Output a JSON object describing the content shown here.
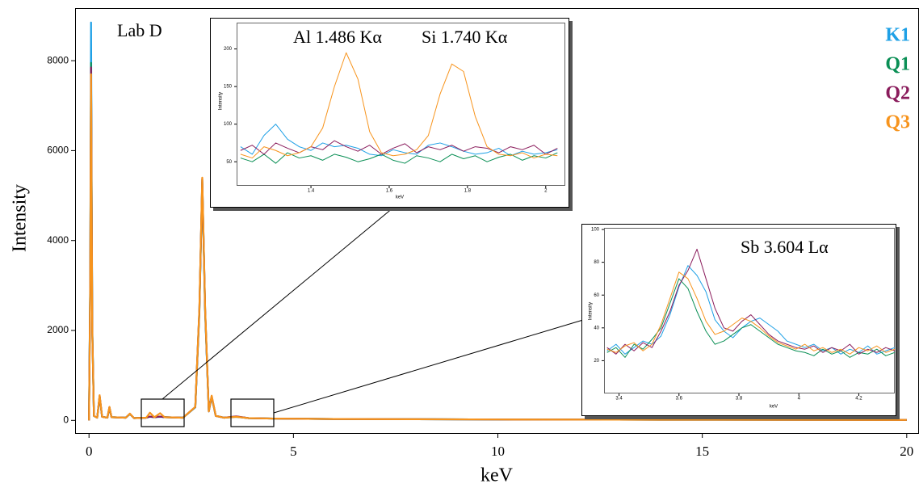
{
  "chart_data": [
    {
      "type": "line",
      "annotation": "Lab D",
      "xlabel": "keV",
      "ylabel": "Intensity",
      "x": [
        0,
        0.03,
        0.05,
        0.08,
        0.12,
        0.2,
        0.26,
        0.32,
        0.45,
        0.5,
        0.55,
        0.9,
        1.0,
        1.1,
        1.4,
        1.49,
        1.6,
        1.74,
        1.85,
        2.3,
        2.6,
        2.7,
        2.77,
        2.84,
        2.93,
        3.0,
        3.1,
        3.3,
        3.6,
        3.9,
        4.5,
        6,
        8,
        10,
        14,
        20
      ],
      "series": [
        {
          "name": "K1",
          "color": "#1ea0e6",
          "values": [
            0,
            3200,
            8850,
            2100,
            100,
            60,
            520,
            80,
            60,
            280,
            70,
            60,
            140,
            50,
            60,
            80,
            70,
            80,
            70,
            60,
            290,
            2400,
            5300,
            2400,
            200,
            520,
            100,
            60,
            85,
            50,
            40,
            30,
            25,
            20,
            15,
            10
          ]
        },
        {
          "name": "Q1",
          "color": "#0a8f55",
          "values": [
            0,
            3100,
            7950,
            2050,
            100,
            60,
            540,
            80,
            60,
            290,
            70,
            60,
            145,
            50,
            60,
            85,
            70,
            85,
            70,
            60,
            295,
            2450,
            5350,
            2450,
            200,
            530,
            100,
            60,
            80,
            50,
            40,
            30,
            25,
            20,
            15,
            10
          ]
        },
        {
          "name": "Q2",
          "color": "#8a1c5c",
          "values": [
            0,
            3050,
            7850,
            2020,
            100,
            60,
            550,
            80,
            60,
            295,
            70,
            60,
            148,
            50,
            60,
            85,
            70,
            85,
            70,
            60,
            298,
            2480,
            5380,
            2480,
            200,
            540,
            100,
            60,
            90,
            50,
            40,
            30,
            25,
            20,
            15,
            10
          ]
        },
        {
          "name": "Q3",
          "color": "#f7941d",
          "values": [
            0,
            3000,
            7700,
            2000,
            100,
            60,
            560,
            80,
            60,
            300,
            70,
            60,
            150,
            50,
            60,
            170,
            70,
            160,
            70,
            60,
            300,
            2500,
            5400,
            2500,
            200,
            550,
            100,
            60,
            80,
            50,
            40,
            30,
            25,
            20,
            15,
            10
          ]
        }
      ],
      "xlim": [
        -0.34,
        20.3
      ],
      "ylim": [
        -300,
        9170
      ],
      "xticks": [
        0,
        5,
        10,
        15,
        20
      ],
      "yticks": [
        0,
        2000,
        4000,
        6000,
        8000
      ]
    },
    {
      "type": "line",
      "annotations": [
        "Al 1.486 Kα",
        "Si 1.740 Kα"
      ],
      "xlabel": "keV",
      "ylabel": "Intensity",
      "x": [
        1.22,
        1.25,
        1.28,
        1.31,
        1.34,
        1.37,
        1.4,
        1.43,
        1.46,
        1.49,
        1.52,
        1.55,
        1.58,
        1.61,
        1.64,
        1.67,
        1.7,
        1.73,
        1.76,
        1.79,
        1.82,
        1.85,
        1.88,
        1.91,
        1.94,
        1.97,
        2.0,
        2.03
      ],
      "series": [
        {
          "color": "#1ea0e6",
          "values": [
            70,
            60,
            85,
            100,
            80,
            70,
            65,
            75,
            70,
            72,
            68,
            60,
            58,
            66,
            62,
            60,
            72,
            75,
            70,
            64,
            60,
            62,
            68,
            58,
            64,
            60,
            62,
            66
          ]
        },
        {
          "color": "#0a8f55",
          "values": [
            55,
            50,
            60,
            48,
            62,
            55,
            58,
            52,
            60,
            56,
            50,
            54,
            60,
            52,
            48,
            58,
            55,
            50,
            60,
            54,
            58,
            50,
            56,
            60,
            52,
            58,
            55,
            62
          ]
        },
        {
          "color": "#8a1c5c",
          "values": [
            65,
            72,
            60,
            75,
            68,
            62,
            70,
            66,
            78,
            70,
            64,
            72,
            60,
            68,
            74,
            62,
            70,
            66,
            72,
            64,
            70,
            68,
            62,
            70,
            66,
            72,
            60,
            68
          ]
        },
        {
          "color": "#f7941d",
          "values": [
            60,
            55,
            70,
            65,
            58,
            62,
            70,
            95,
            150,
            195,
            160,
            90,
            62,
            58,
            60,
            66,
            85,
            140,
            180,
            170,
            110,
            70,
            60,
            58,
            62,
            55,
            60,
            58
          ]
        }
      ],
      "xlim": [
        1.21,
        2.05
      ],
      "ylim": [
        18,
        235
      ],
      "xticks": [
        1.4,
        1.6,
        1.8,
        2
      ],
      "yticks": [
        50,
        100,
        150,
        200
      ]
    },
    {
      "type": "line",
      "annotation": "Sb 3.604 Lα",
      "xlabel": "keV",
      "ylabel": "Intensity",
      "x": [
        3.36,
        3.39,
        3.42,
        3.45,
        3.48,
        3.51,
        3.54,
        3.57,
        3.6,
        3.63,
        3.66,
        3.69,
        3.72,
        3.75,
        3.78,
        3.81,
        3.84,
        3.87,
        3.9,
        3.93,
        3.96,
        3.99,
        4.02,
        4.05,
        4.08,
        4.11,
        4.14,
        4.17,
        4.2,
        4.23,
        4.26,
        4.29,
        4.32
      ],
      "series": [
        {
          "color": "#1ea0e6",
          "values": [
            26,
            30,
            24,
            28,
            32,
            30,
            35,
            48,
            65,
            78,
            72,
            62,
            45,
            38,
            34,
            40,
            44,
            46,
            42,
            38,
            32,
            30,
            28,
            30,
            26,
            28,
            24,
            27,
            25,
            29,
            24,
            26,
            28
          ]
        },
        {
          "color": "#0a8f55",
          "values": [
            25,
            28,
            22,
            30,
            27,
            33,
            40,
            55,
            70,
            64,
            50,
            38,
            30,
            32,
            36,
            40,
            42,
            38,
            34,
            30,
            28,
            26,
            25,
            23,
            27,
            24,
            26,
            22,
            25,
            24,
            27,
            23,
            25
          ]
        },
        {
          "color": "#8a1c5c",
          "values": [
            28,
            24,
            30,
            26,
            31,
            28,
            38,
            50,
            66,
            75,
            88,
            70,
            52,
            40,
            38,
            44,
            48,
            42,
            36,
            32,
            30,
            28,
            27,
            29,
            25,
            28,
            26,
            30,
            24,
            27,
            25,
            28,
            26
          ]
        },
        {
          "color": "#f7941d",
          "values": [
            27,
            25,
            29,
            31,
            26,
            30,
            42,
            58,
            74,
            70,
            58,
            44,
            36,
            38,
            42,
            46,
            44,
            40,
            35,
            31,
            29,
            27,
            30,
            26,
            28,
            25,
            27,
            24,
            28,
            26,
            29,
            25,
            27
          ]
        }
      ],
      "xlim": [
        3.35,
        4.32
      ],
      "ylim": [
        0,
        101
      ],
      "xticks": [
        3.4,
        3.6,
        3.8,
        4,
        4.2
      ],
      "yticks": [
        20,
        40,
        60,
        80,
        100
      ]
    }
  ]
}
